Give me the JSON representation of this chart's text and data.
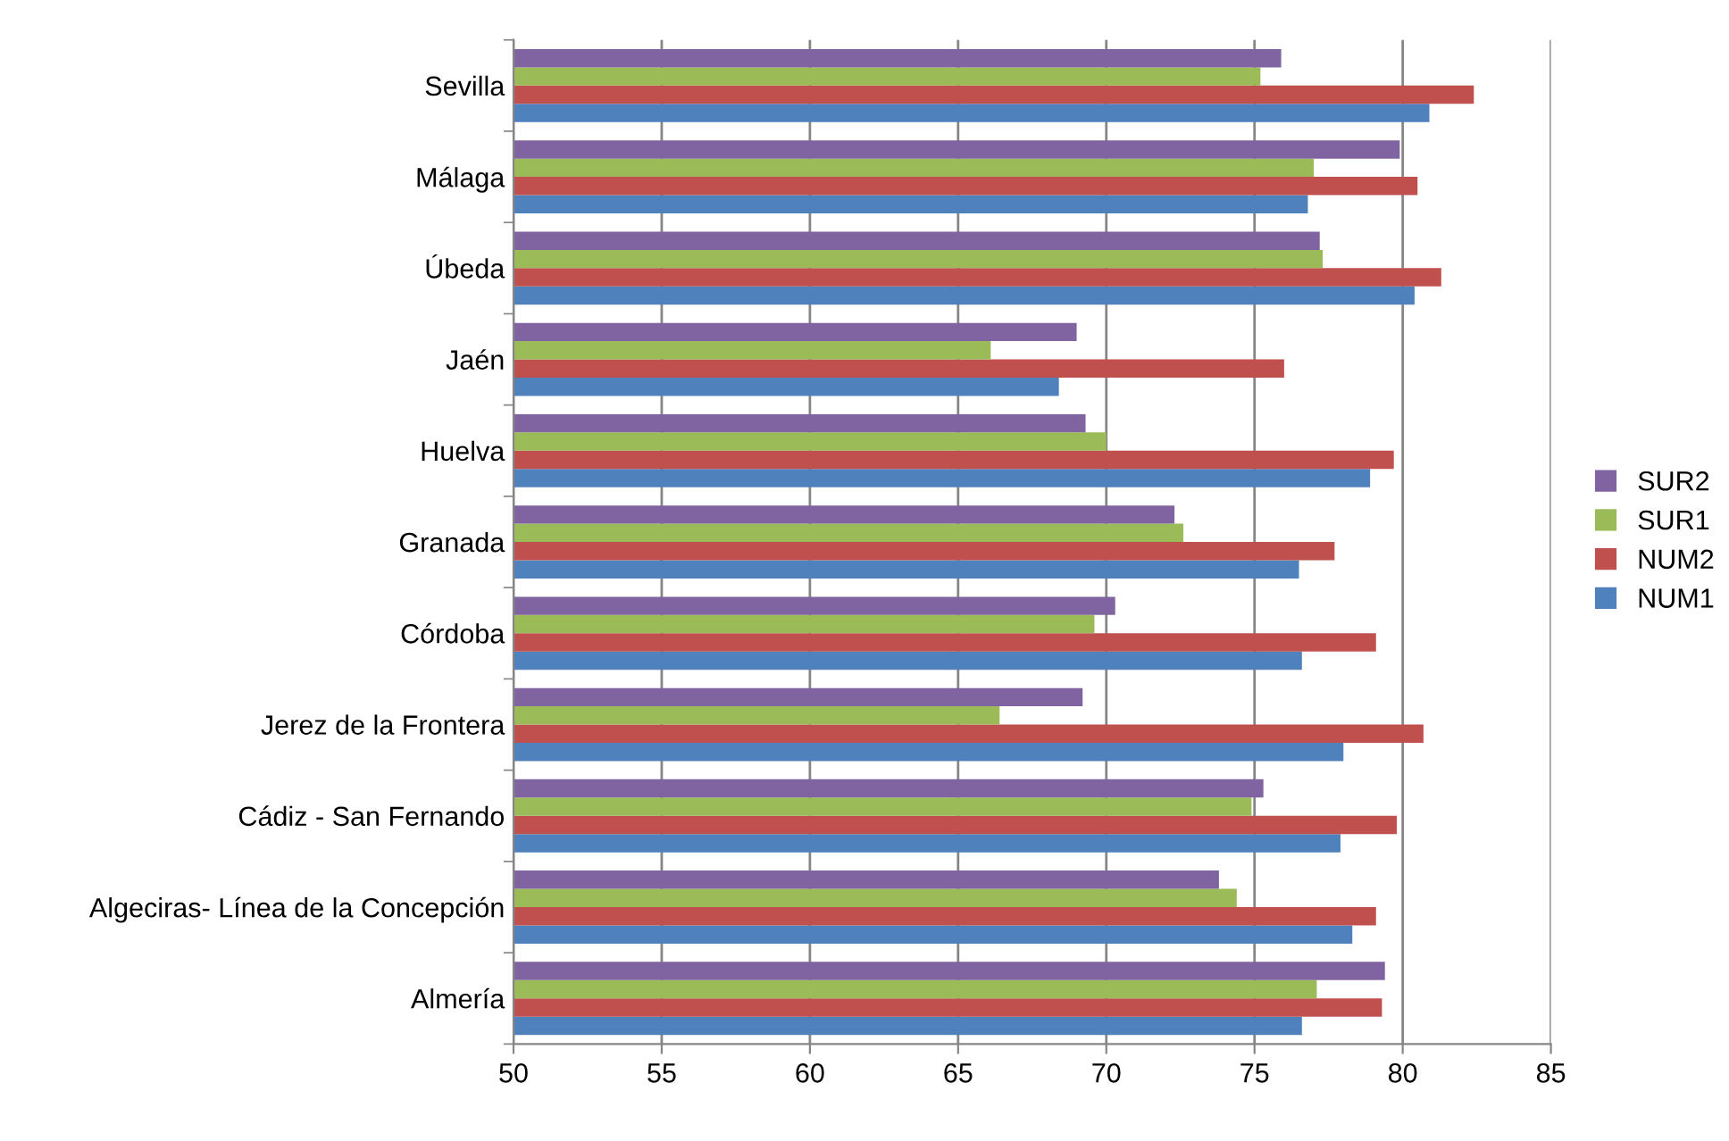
{
  "chart_data": {
    "type": "bar",
    "orientation": "horizontal",
    "categories": [
      "Sevilla",
      "Málaga",
      "Úbeda",
      "Jaén",
      "Huelva",
      "Granada",
      "Córdoba",
      "Jerez de la Frontera",
      "Cádiz - San Fernando",
      "Algeciras- Línea de la Concepción",
      "Almería"
    ],
    "series": [
      {
        "name": "NUM1",
        "color": "#4f81bd",
        "values": [
          80.9,
          76.8,
          80.4,
          68.4,
          78.9,
          76.5,
          76.6,
          78.0,
          77.9,
          78.3,
          76.6
        ]
      },
      {
        "name": "NUM2",
        "color": "#c0504d",
        "values": [
          82.4,
          80.5,
          81.3,
          76.0,
          79.7,
          77.7,
          79.1,
          80.7,
          79.8,
          79.1,
          79.3
        ]
      },
      {
        "name": "SUR1",
        "color": "#9bbb59",
        "values": [
          75.2,
          77.0,
          77.3,
          66.1,
          70.0,
          72.6,
          69.6,
          66.4,
          74.9,
          74.4,
          77.1
        ]
      },
      {
        "name": "SUR2",
        "color": "#8064a2",
        "values": [
          75.9,
          79.9,
          77.2,
          69.0,
          69.3,
          72.3,
          70.3,
          69.2,
          75.3,
          73.8,
          79.4
        ]
      }
    ],
    "xlim": [
      50,
      85
    ],
    "xticks": [
      50,
      55,
      60,
      65,
      70,
      75,
      80,
      85
    ],
    "grid": "x",
    "legend": "right"
  }
}
